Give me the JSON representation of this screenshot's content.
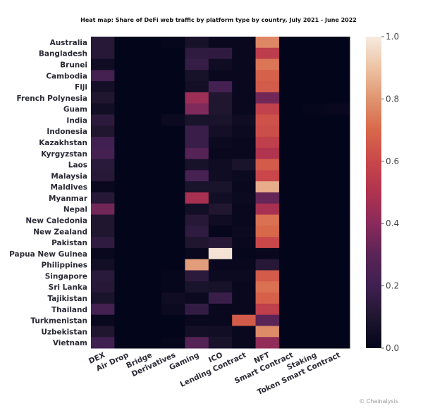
{
  "chart_data": {
    "type": "heatmap",
    "title": "Heat map: Share of DeFi web traffic by platform type by country, July 2021 - June 2022",
    "xlabel": "",
    "ylabel": "",
    "columns": [
      "DEX",
      "Air Drop",
      "Bridge",
      "Derivatives",
      "Gaming",
      "ICO",
      "Lending Contract",
      "NFT",
      "Smart Contract",
      "Staking",
      "Token Smart Contract"
    ],
    "rows": [
      "Australia",
      "Bangladesh",
      "Brunei",
      "Cambodia",
      "Fiji",
      "French Polynesia",
      "Guam",
      "India",
      "Indonesia",
      "Kazakhstan",
      "Kyrgyzstan",
      "Laos",
      "Malaysia",
      "Maldives",
      "Myanmar",
      "Nepal",
      "New Caledonia",
      "New Zealand",
      "Pakistan",
      "Papua New Guinea",
      "Philippines",
      "Singapore",
      "Sri Lanka",
      "Tajikistan",
      "Thailand",
      "Turkmenistan",
      "Uzbekistan",
      "Vietnam"
    ],
    "values": [
      [
        0.12,
        0.0,
        0.0,
        0.01,
        0.07,
        0.02,
        0.02,
        0.77,
        0.0,
        0.0,
        0.0
      ],
      [
        0.12,
        0.0,
        0.0,
        0.0,
        0.15,
        0.15,
        0.02,
        0.55,
        0.0,
        0.0,
        0.0
      ],
      [
        0.04,
        0.0,
        0.0,
        0.0,
        0.17,
        0.04,
        0.02,
        0.73,
        0.0,
        0.0,
        0.0
      ],
      [
        0.22,
        0.0,
        0.0,
        0.0,
        0.07,
        0.02,
        0.02,
        0.68,
        0.0,
        0.0,
        0.0
      ],
      [
        0.06,
        0.0,
        0.0,
        0.0,
        0.06,
        0.22,
        0.02,
        0.66,
        0.0,
        0.0,
        0.0
      ],
      [
        0.1,
        0.0,
        0.0,
        0.0,
        0.45,
        0.1,
        0.02,
        0.35,
        0.0,
        0.0,
        0.0
      ],
      [
        0.05,
        0.0,
        0.0,
        0.0,
        0.38,
        0.1,
        0.02,
        0.57,
        0.0,
        0.01,
        0.02
      ],
      [
        0.14,
        0.0,
        0.0,
        0.03,
        0.08,
        0.08,
        0.04,
        0.63,
        0.0,
        0.0,
        0.0
      ],
      [
        0.1,
        0.0,
        0.0,
        0.0,
        0.18,
        0.06,
        0.03,
        0.62,
        0.0,
        0.0,
        0.0
      ],
      [
        0.2,
        0.0,
        0.0,
        0.0,
        0.18,
        0.03,
        0.02,
        0.56,
        0.0,
        0.0,
        0.0
      ],
      [
        0.22,
        0.0,
        0.0,
        0.0,
        0.28,
        0.02,
        0.02,
        0.5,
        0.0,
        0.0,
        0.0
      ],
      [
        0.13,
        0.0,
        0.0,
        0.0,
        0.07,
        0.04,
        0.08,
        0.66,
        0.0,
        0.0,
        0.0
      ],
      [
        0.12,
        0.0,
        0.0,
        0.0,
        0.23,
        0.04,
        0.03,
        0.6,
        0.0,
        0.0,
        0.0
      ],
      [
        0.02,
        0.0,
        0.0,
        0.0,
        0.08,
        0.08,
        0.02,
        0.85,
        0.0,
        0.0,
        0.0
      ],
      [
        0.12,
        0.0,
        0.0,
        0.0,
        0.48,
        0.05,
        0.03,
        0.32,
        0.0,
        0.0,
        0.0
      ],
      [
        0.35,
        0.0,
        0.0,
        0.0,
        0.05,
        0.1,
        0.02,
        0.48,
        0.0,
        0.0,
        0.0
      ],
      [
        0.1,
        0.0,
        0.0,
        0.0,
        0.12,
        0.04,
        0.02,
        0.72,
        0.0,
        0.0,
        0.0
      ],
      [
        0.1,
        0.0,
        0.0,
        0.0,
        0.15,
        0.01,
        0.03,
        0.7,
        0.0,
        0.0,
        0.0
      ],
      [
        0.15,
        0.0,
        0.0,
        0.0,
        0.1,
        0.12,
        0.02,
        0.6,
        0.0,
        0.0,
        0.0
      ],
      [
        0.02,
        0.0,
        0.0,
        0.0,
        0.02,
        0.98,
        0.01,
        0.02,
        0.0,
        0.0,
        0.0
      ],
      [
        0.05,
        0.0,
        0.0,
        0.0,
        0.82,
        0.02,
        0.02,
        0.12,
        0.0,
        0.0,
        0.0
      ],
      [
        0.13,
        0.0,
        0.0,
        0.01,
        0.14,
        0.03,
        0.03,
        0.66,
        0.0,
        0.0,
        0.0
      ],
      [
        0.12,
        0.0,
        0.0,
        0.01,
        0.08,
        0.07,
        0.02,
        0.72,
        0.0,
        0.0,
        0.0
      ],
      [
        0.08,
        0.0,
        0.0,
        0.04,
        0.03,
        0.18,
        0.02,
        0.68,
        0.0,
        0.0,
        0.0
      ],
      [
        0.22,
        0.0,
        0.0,
        0.03,
        0.16,
        0.02,
        0.02,
        0.56,
        0.0,
        0.0,
        0.0
      ],
      [
        0.02,
        0.0,
        0.0,
        0.0,
        0.02,
        0.02,
        0.66,
        0.3,
        0.0,
        0.0,
        0.0
      ],
      [
        0.1,
        0.0,
        0.0,
        0.0,
        0.06,
        0.05,
        0.02,
        0.78,
        0.0,
        0.0,
        0.0
      ],
      [
        0.2,
        0.0,
        0.0,
        0.01,
        0.28,
        0.08,
        0.02,
        0.42,
        0.0,
        0.0,
        0.0
      ]
    ],
    "colorbar": {
      "range": [
        0,
        1
      ],
      "ticks": [
        "0.0",
        "0.2",
        "0.4",
        "0.6",
        "0.8",
        "1.0"
      ]
    },
    "colormap_stops": [
      "#03051a",
      "#201630",
      "#3f2050",
      "#5a2456",
      "#8a2a5c",
      "#b0334f",
      "#c9474a",
      "#d8684a",
      "#e09470",
      "#edc3a3",
      "#f6ebe0"
    ],
    "grid": false
  },
  "credit": "© Chainalysis"
}
